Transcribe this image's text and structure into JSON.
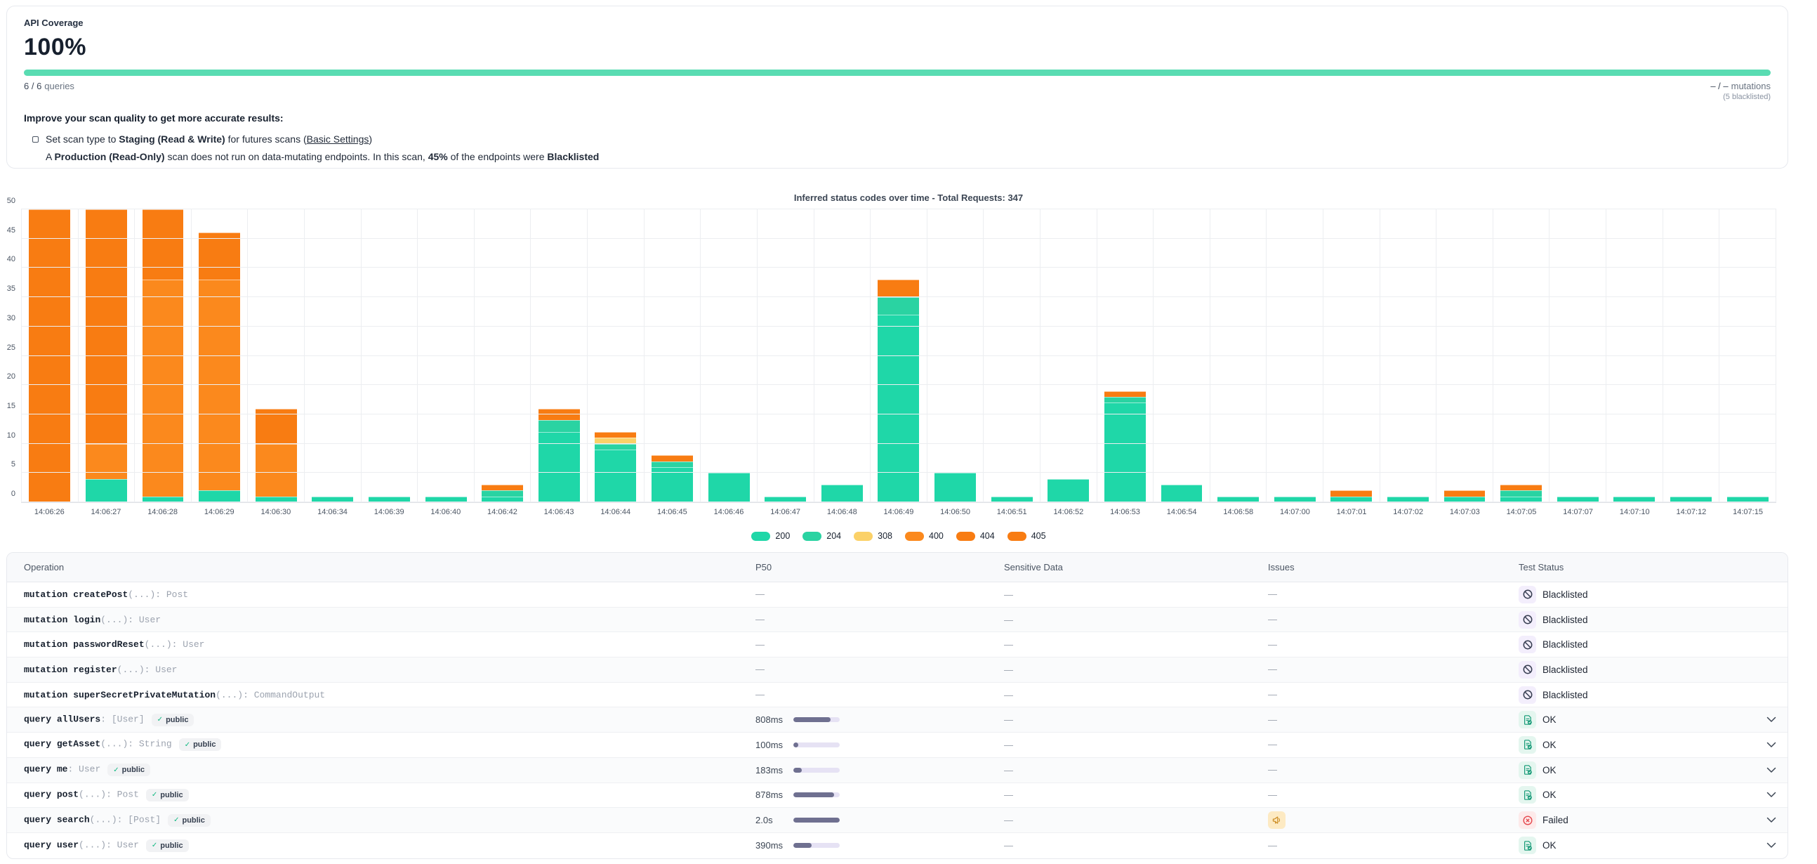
{
  "colors": {
    "coverage_bar": "#59dcb2",
    "p50_track": "#e6e2f4",
    "p50_fill": "#6f7090",
    "status_200": "#1fd7a8",
    "status_204": "#2ad3a2",
    "status_308": "#fbd168",
    "status_400": "#fb891d",
    "status_404": "#f87c12",
    "status_405": "#f87c12"
  },
  "coverage": {
    "title": "API Coverage",
    "percent": "100%",
    "queries_count": "6 / 6",
    "queries_label": "queries",
    "mutations_count": "– / –",
    "mutations_label": "mutations",
    "mutations_note": "(5 blacklisted)"
  },
  "tips": {
    "heading": "Improve your scan quality to get more accurate results:",
    "item_pre": "Set scan type to ",
    "item_bold": "Staging (Read & Write)",
    "item_mid": " for futures scans (",
    "item_link": "Basic Settings",
    "item_post": ")",
    "sub_pre": "A ",
    "sub_bold1": "Production (Read-Only)",
    "sub_mid1": " scan does not run on data-mutating endpoints. In this scan, ",
    "sub_bold2": "45%",
    "sub_mid2": " of the endpoints were ",
    "sub_bold3": "Blacklisted"
  },
  "chart_data": {
    "type": "bar",
    "stacked": true,
    "title": "Inferred status codes over time - Total Requests: 347",
    "total_requests": 347,
    "ylim": [
      0,
      50
    ],
    "ytick_step": 5,
    "grid": true,
    "legend_position": "bottom",
    "categories": [
      "14:06:26",
      "14:06:27",
      "14:06:28",
      "14:06:29",
      "14:06:30",
      "14:06:34",
      "14:06:39",
      "14:06:40",
      "14:06:42",
      "14:06:43",
      "14:06:44",
      "14:06:45",
      "14:06:46",
      "14:06:47",
      "14:06:48",
      "14:06:49",
      "14:06:50",
      "14:06:51",
      "14:06:52",
      "14:06:53",
      "14:06:54",
      "14:06:58",
      "14:07:00",
      "14:07:01",
      "14:07:02",
      "14:07:03",
      "14:07:05",
      "14:07:07",
      "14:07:10",
      "14:07:12",
      "14:07:15"
    ],
    "series": [
      {
        "name": "200",
        "color": "#1fd7a8",
        "values": [
          0,
          4,
          1,
          2,
          1,
          1,
          1,
          1,
          1,
          12,
          9,
          6,
          5,
          1,
          3,
          32,
          5,
          1,
          4,
          17,
          3,
          1,
          1,
          1,
          1,
          1,
          1,
          1,
          1,
          1,
          1
        ]
      },
      {
        "name": "204",
        "color": "#2ad3a2",
        "values": [
          0,
          0,
          0,
          0,
          0,
          0,
          0,
          0,
          1,
          2,
          1,
          1,
          0,
          0,
          0,
          3,
          0,
          0,
          0,
          1,
          0,
          0,
          0,
          0,
          0,
          0,
          1,
          0,
          0,
          0,
          0
        ]
      },
      {
        "name": "308",
        "color": "#fbd168",
        "values": [
          0,
          0,
          0,
          0,
          0,
          0,
          0,
          0,
          0,
          0,
          1,
          0,
          0,
          0,
          0,
          0,
          0,
          0,
          0,
          0,
          0,
          0,
          0,
          0,
          0,
          0,
          0,
          0,
          0,
          0,
          0
        ]
      },
      {
        "name": "400",
        "color": "#fb891d",
        "values": [
          0,
          6,
          37,
          36,
          9,
          0,
          0,
          0,
          0,
          0,
          0,
          0,
          0,
          0,
          0,
          0,
          0,
          0,
          0,
          0,
          0,
          0,
          0,
          0,
          0,
          0,
          0,
          0,
          0,
          0,
          0
        ]
      },
      {
        "name": "404",
        "color": "#f87c12",
        "values": [
          50,
          40,
          12,
          8,
          6,
          0,
          0,
          0,
          1,
          2,
          1,
          1,
          0,
          0,
          0,
          3,
          0,
          0,
          0,
          1,
          0,
          0,
          0,
          0,
          0,
          0,
          0,
          0,
          0,
          0,
          0
        ]
      },
      {
        "name": "405",
        "color": "#f87c12",
        "values": [
          0,
          0,
          0,
          0,
          0,
          0,
          0,
          0,
          0,
          0,
          0,
          0,
          0,
          0,
          0,
          0,
          0,
          0,
          0,
          0,
          0,
          0,
          0,
          1,
          0,
          1,
          1,
          0,
          0,
          0,
          0
        ]
      }
    ]
  },
  "table": {
    "headers": [
      "Operation",
      "P50",
      "Sensitive Data",
      "Issues",
      "Test Status"
    ],
    "public_badge_label": "public",
    "rows": [
      {
        "keyword": "mutation",
        "name": "createPost",
        "sig": "(...)",
        "rtype": ": Post",
        "public": false,
        "p50": "—",
        "p50_pct": null,
        "sensitive": "—",
        "issues": "—",
        "status": "Blacklisted",
        "expandable": false
      },
      {
        "keyword": "mutation",
        "name": "login",
        "sig": "(...)",
        "rtype": ": User",
        "public": false,
        "p50": "—",
        "p50_pct": null,
        "sensitive": "—",
        "issues": "—",
        "status": "Blacklisted",
        "expandable": false
      },
      {
        "keyword": "mutation",
        "name": "passwordReset",
        "sig": "(...)",
        "rtype": ": User",
        "public": false,
        "p50": "—",
        "p50_pct": null,
        "sensitive": "—",
        "issues": "—",
        "status": "Blacklisted",
        "expandable": false
      },
      {
        "keyword": "mutation",
        "name": "register",
        "sig": "(...)",
        "rtype": ": User",
        "public": false,
        "p50": "—",
        "p50_pct": null,
        "sensitive": "—",
        "issues": "—",
        "status": "Blacklisted",
        "expandable": false
      },
      {
        "keyword": "mutation",
        "name": "superSecretPrivateMutation",
        "sig": "(...)",
        "rtype": ": CommandOutput",
        "public": false,
        "p50": "—",
        "p50_pct": null,
        "sensitive": "—",
        "issues": "—",
        "status": "Blacklisted",
        "expandable": false
      },
      {
        "keyword": "query",
        "name": "allUsers",
        "sig": "",
        "rtype": ": [User]",
        "public": true,
        "p50": "808ms",
        "p50_pct": 81,
        "sensitive": "—",
        "issues": "—",
        "status": "OK",
        "expandable": true
      },
      {
        "keyword": "query",
        "name": "getAsset",
        "sig": "(...)",
        "rtype": ": String",
        "public": true,
        "p50": "100ms",
        "p50_pct": 10,
        "sensitive": "—",
        "issues": "—",
        "status": "OK",
        "expandable": true
      },
      {
        "keyword": "query",
        "name": "me",
        "sig": "",
        "rtype": ": User",
        "public": true,
        "p50": "183ms",
        "p50_pct": 18,
        "sensitive": "—",
        "issues": "—",
        "status": "OK",
        "expandable": true
      },
      {
        "keyword": "query",
        "name": "post",
        "sig": "(...)",
        "rtype": ": Post",
        "public": true,
        "p50": "878ms",
        "p50_pct": 88,
        "sensitive": "—",
        "issues": "—",
        "status": "OK",
        "expandable": true
      },
      {
        "keyword": "query",
        "name": "search",
        "sig": "(...)",
        "rtype": ": [Post]",
        "public": true,
        "p50": "2.0s",
        "p50_pct": 100,
        "sensitive": "—",
        "issues": "alert",
        "status": "Failed",
        "expandable": true
      },
      {
        "keyword": "query",
        "name": "user",
        "sig": "(...)",
        "rtype": ": User",
        "public": true,
        "p50": "390ms",
        "p50_pct": 39,
        "sensitive": "—",
        "issues": "—",
        "status": "OK",
        "expandable": true
      }
    ]
  }
}
